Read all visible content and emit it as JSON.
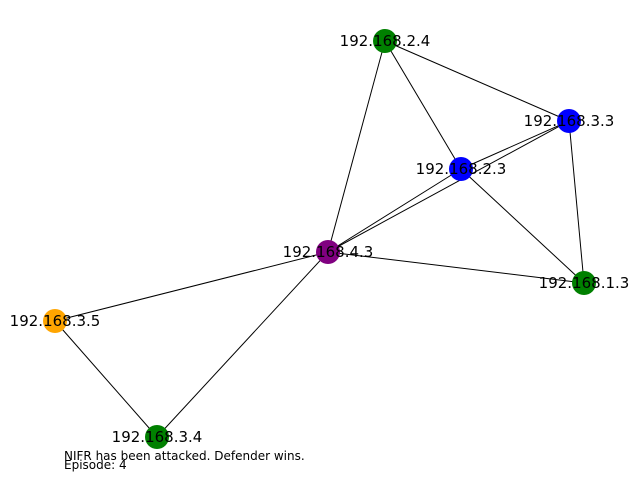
{
  "graph": {
    "nodes": [
      {
        "id": "n-2-4",
        "label": "192.168.2.4",
        "color": "#008000"
      },
      {
        "id": "n-3-3",
        "label": "192.168.3.3",
        "color": "#0000ff"
      },
      {
        "id": "n-2-3",
        "label": "192.168.2.3",
        "color": "#0000ff"
      },
      {
        "id": "n-4-3",
        "label": "192.168.4.3",
        "color": "#800080"
      },
      {
        "id": "n-1-3",
        "label": "192.168.1.3",
        "color": "#008000"
      },
      {
        "id": "n-3-5",
        "label": "192.168.3.5",
        "color": "#ffa500"
      },
      {
        "id": "n-3-4",
        "label": "192.168.3.4",
        "color": "#008000"
      }
    ],
    "edges": [
      [
        "n-2-4",
        "n-3-3"
      ],
      [
        "n-2-4",
        "n-2-3"
      ],
      [
        "n-2-4",
        "n-4-3"
      ],
      [
        "n-3-3",
        "n-2-3"
      ],
      [
        "n-3-3",
        "n-4-3"
      ],
      [
        "n-3-3",
        "n-1-3"
      ],
      [
        "n-2-3",
        "n-4-3"
      ],
      [
        "n-2-3",
        "n-1-3"
      ],
      [
        "n-4-3",
        "n-1-3"
      ],
      [
        "n-4-3",
        "n-3-5"
      ],
      [
        "n-4-3",
        "n-3-4"
      ],
      [
        "n-3-5",
        "n-3-4"
      ]
    ]
  },
  "footer": {
    "status": "NIFR has been attacked. Defender wins.",
    "episode": "Episode: 4"
  }
}
